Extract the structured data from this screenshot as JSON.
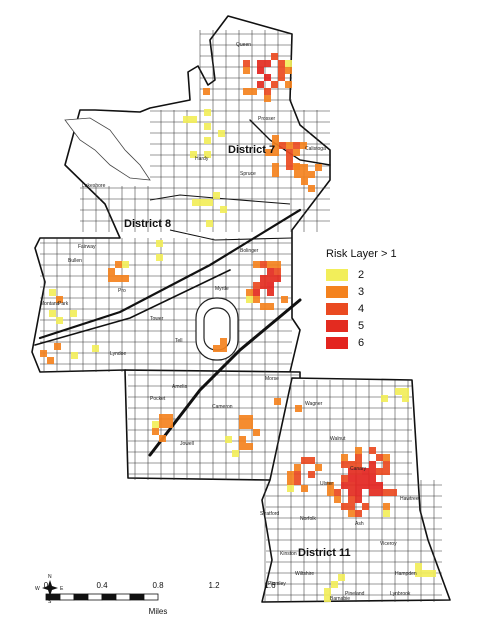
{
  "districts": [
    "District 7",
    "District 8",
    "District 11"
  ],
  "streets": [
    "Queen",
    "Prosser",
    "Hardy",
    "Spruce",
    "Calistoga",
    "Bullen",
    "Fairway",
    "Lakeshore",
    "Pro",
    "Park",
    "Tower",
    "Bolinger",
    "Tell",
    "Myrtle",
    "Lyndoe",
    "Amelia",
    "Cameron",
    "Jowell",
    "Morse",
    "Wagner",
    "Walnut",
    "Ulster",
    "Norfolk",
    "Canary",
    "Stratford",
    "Barnabie",
    "Plumley",
    "Kinston",
    "Viceroy",
    "Ash",
    "Hawtree",
    "Wiltshire",
    "Hampden",
    "Pineland",
    "Pocket",
    "Lynbrook",
    "Montana"
  ],
  "legend": {
    "title": "Risk Layer > 1",
    "items": [
      {
        "label": "2",
        "color": "#f2ee5a"
      },
      {
        "label": "3",
        "color": "#f4821e"
      },
      {
        "label": "4",
        "color": "#ea4a21"
      },
      {
        "label": "5",
        "color": "#e32b20"
      },
      {
        "label": "6",
        "color": "#e3241f"
      }
    ]
  },
  "scale": {
    "ticks": [
      "0",
      "0.4",
      "0.8",
      "1.2",
      "1.6"
    ],
    "unit": "Miles"
  },
  "compass": {
    "n": "N",
    "s": "S",
    "e": "E",
    "w": "W"
  }
}
